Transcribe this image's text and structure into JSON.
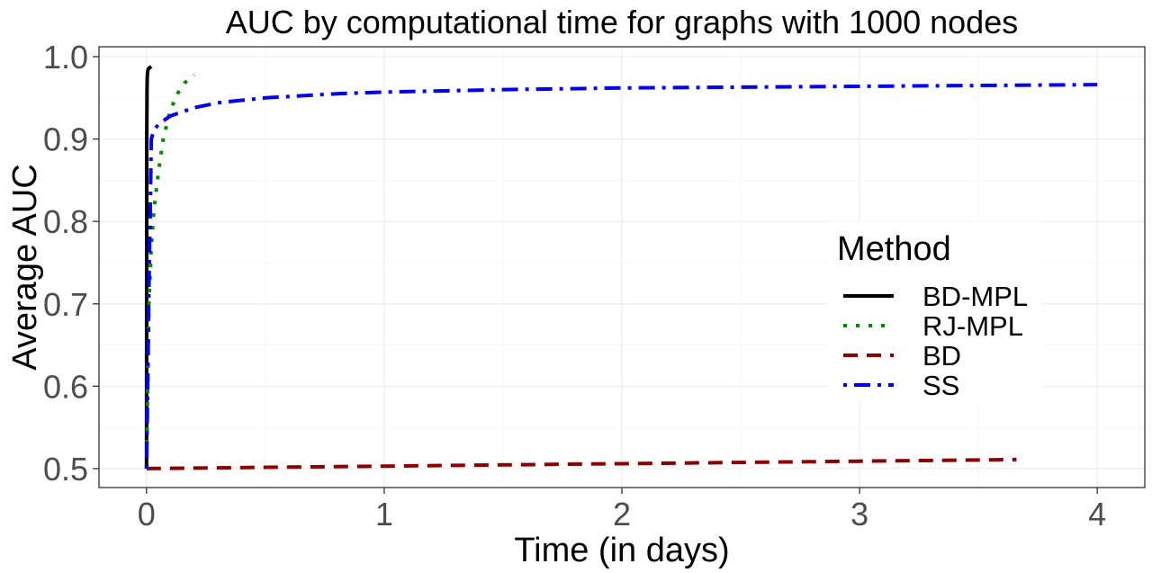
{
  "chart_data": {
    "type": "line",
    "title": "AUC by computational time for graphs with 1000 nodes",
    "xlabel": "Time (in days)",
    "ylabel": "Average AUC",
    "xlim": [
      -0.2,
      4.2
    ],
    "ylim": [
      0.477,
      1.012
    ],
    "x_ticks": [
      0,
      1,
      2,
      3,
      4
    ],
    "x_tick_labels": [
      "0",
      "1",
      "2",
      "3",
      "4"
    ],
    "y_ticks": [
      0.5,
      0.6,
      0.7,
      0.8,
      0.9,
      1.0
    ],
    "y_tick_labels": [
      "0.5",
      "0.6",
      "0.7",
      "0.8",
      "0.9",
      "1.0"
    ],
    "grid": true,
    "legend": {
      "title": "Method",
      "position": "right",
      "entries": [
        "BD-MPL",
        "RJ-MPL",
        "BD",
        "SS"
      ]
    },
    "series": [
      {
        "name": "BD-MPL",
        "color": "#000000",
        "dash": "solid",
        "x": [
          0,
          0.001,
          0.002,
          0.003,
          0.004,
          0.006,
          0.01,
          0.015,
          0.02
        ],
        "y": [
          0.5,
          0.9,
          0.96,
          0.975,
          0.98,
          0.984,
          0.986,
          0.987,
          0.988
        ]
      },
      {
        "name": "RJ-MPL",
        "color": "#008b00",
        "dash": "dotted",
        "x": [
          0,
          0.01,
          0.02,
          0.03,
          0.05,
          0.07,
          0.1,
          0.13,
          0.16,
          0.2
        ],
        "y": [
          0.5,
          0.7,
          0.77,
          0.81,
          0.86,
          0.9,
          0.935,
          0.955,
          0.968,
          0.978
        ]
      },
      {
        "name": "BD",
        "color": "#8b0000",
        "dash": "dashed",
        "x": [
          0,
          0.5,
          1,
          1.5,
          2,
          2.5,
          3,
          3.5,
          3.66
        ],
        "y": [
          0.5,
          0.5015,
          0.503,
          0.5045,
          0.506,
          0.5075,
          0.509,
          0.5105,
          0.511
        ]
      },
      {
        "name": "SS",
        "color": "#0000ee",
        "dash": "dotdash",
        "x": [
          0,
          0.005,
          0.01,
          0.015,
          0.02,
          0.03,
          0.05,
          0.1,
          0.2,
          0.3,
          0.5,
          0.8,
          1,
          1.5,
          2,
          2.5,
          3,
          3.5,
          4
        ],
        "y": [
          0.5,
          0.6,
          0.72,
          0.8,
          0.9,
          0.91,
          0.918,
          0.928,
          0.938,
          0.944,
          0.95,
          0.955,
          0.957,
          0.96,
          0.962,
          0.963,
          0.964,
          0.965,
          0.966
        ]
      }
    ]
  }
}
